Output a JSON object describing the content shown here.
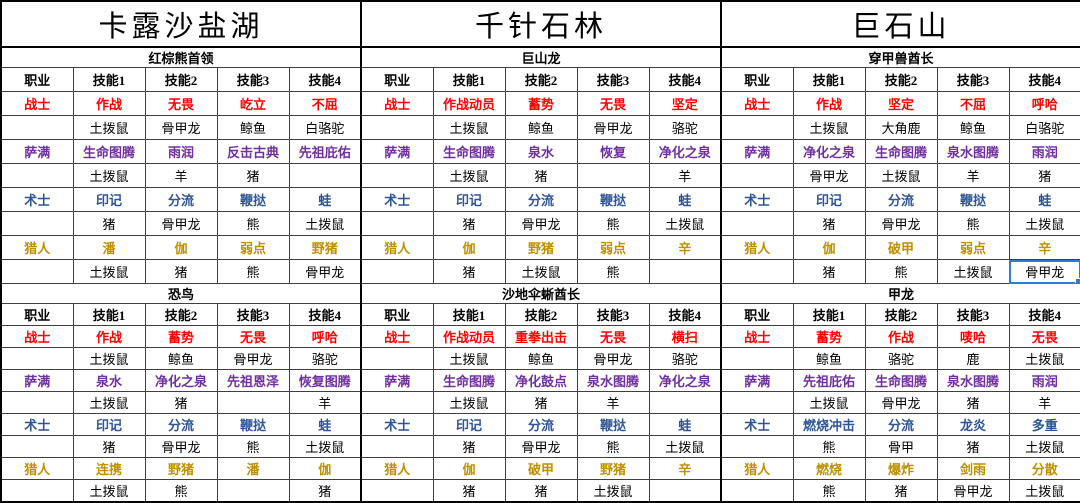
{
  "sheet": {
    "column_headers": [
      "职业",
      "技能1",
      "技能2",
      "技能3",
      "技能4"
    ],
    "class_colors": {
      "战士": "#ff0000",
      "萨满": "#7030a0",
      "术士": "#2f5597",
      "猎人": "#bf9000"
    },
    "selection_color": "#2b7cd3",
    "sections": [
      {
        "location": "卡露沙盐湖",
        "bosses": [
          {
            "name": "红棕熊首领",
            "rows": [
              {
                "class": "战士",
                "skills": [
                  "作战",
                  "无畏",
                  "屹立",
                  "不屈"
                ],
                "pets": [
                  "土拨鼠",
                  "骨甲龙",
                  "鲸鱼",
                  "白骆驼"
                ]
              },
              {
                "class": "萨满",
                "skills": [
                  "生命图腾",
                  "雨润",
                  "反击古典",
                  "先祖庇佑"
                ],
                "pets": [
                  "土拨鼠",
                  "羊",
                  "猪",
                  ""
                ]
              },
              {
                "class": "术士",
                "skills": [
                  "印记",
                  "分流",
                  "鞭挞",
                  "蛙"
                ],
                "pets": [
                  "猪",
                  "骨甲龙",
                  "熊",
                  "土拨鼠"
                ]
              },
              {
                "class": "猎人",
                "skills": [
                  "潘",
                  "伽",
                  "弱点",
                  "野猪"
                ],
                "pets": [
                  "土拨鼠",
                  "猪",
                  "熊",
                  "骨甲龙"
                ]
              }
            ]
          },
          {
            "name": "恐鸟",
            "rows": [
              {
                "class": "战士",
                "skills": [
                  "作战",
                  "蓄势",
                  "无畏",
                  "呼哈"
                ],
                "pets": [
                  "土拨鼠",
                  "鲸鱼",
                  "骨甲龙",
                  "骆驼"
                ]
              },
              {
                "class": "萨满",
                "skills": [
                  "泉水",
                  "净化之泉",
                  "先祖恩泽",
                  "恢复图腾"
                ],
                "pets": [
                  "土拨鼠",
                  "猪",
                  "",
                  "羊"
                ]
              },
              {
                "class": "术士",
                "skills": [
                  "印记",
                  "分流",
                  "鞭挞",
                  "蛙"
                ],
                "pets": [
                  "猪",
                  "骨甲龙",
                  "熊",
                  "土拨鼠"
                ]
              },
              {
                "class": "猎人",
                "skills": [
                  "连携",
                  "野猪",
                  "潘",
                  "伽"
                ],
                "pets": [
                  "土拨鼠",
                  "熊",
                  "",
                  "猪"
                ]
              }
            ]
          }
        ]
      },
      {
        "location": "千针石林",
        "bosses": [
          {
            "name": "巨山龙",
            "rows": [
              {
                "class": "战士",
                "skills": [
                  "作战动员",
                  "蓄势",
                  "无畏",
                  "坚定"
                ],
                "pets": [
                  "土拨鼠",
                  "鲸鱼",
                  "骨甲龙",
                  "骆驼"
                ]
              },
              {
                "class": "萨满",
                "skills": [
                  "生命图腾",
                  "泉水",
                  "恢复",
                  "净化之泉"
                ],
                "pets": [
                  "土拨鼠",
                  "猪",
                  "",
                  "羊"
                ]
              },
              {
                "class": "术士",
                "skills": [
                  "印记",
                  "分流",
                  "鞭挞",
                  "蛙"
                ],
                "pets": [
                  "猪",
                  "骨甲龙",
                  "熊",
                  "土拨鼠"
                ]
              },
              {
                "class": "猎人",
                "skills": [
                  "伽",
                  "野猪",
                  "弱点",
                  "辛"
                ],
                "pets": [
                  "猪",
                  "土拨鼠",
                  "熊",
                  ""
                ]
              }
            ]
          },
          {
            "name": "沙地伞蜥酋长",
            "rows": [
              {
                "class": "战士",
                "skills": [
                  "作战动员",
                  "重拳出击",
                  "无畏",
                  "横扫"
                ],
                "pets": [
                  "土拨鼠",
                  "鲸鱼",
                  "骨甲龙",
                  "骆驼"
                ]
              },
              {
                "class": "萨满",
                "skills": [
                  "生命图腾",
                  "净化鼓点",
                  "泉水图腾",
                  "净化之泉"
                ],
                "pets": [
                  "土拨鼠",
                  "猪",
                  "羊",
                  ""
                ]
              },
              {
                "class": "术士",
                "skills": [
                  "印记",
                  "分流",
                  "鞭挞",
                  "蛙"
                ],
                "pets": [
                  "猪",
                  "骨甲龙",
                  "熊",
                  "土拨鼠"
                ]
              },
              {
                "class": "猎人",
                "skills": [
                  "伽",
                  "破甲",
                  "野猪",
                  "辛"
                ],
                "pets": [
                  "猪",
                  "猪",
                  "土拨鼠",
                  ""
                ]
              }
            ]
          }
        ]
      },
      {
        "location": "巨石山",
        "bosses": [
          {
            "name": "穿甲兽酋长",
            "rows": [
              {
                "class": "战士",
                "skills": [
                  "作战",
                  "坚定",
                  "不屈",
                  "呼哈"
                ],
                "pets": [
                  "土拨鼠",
                  "大角鹿",
                  "鲸鱼",
                  "白骆驼"
                ]
              },
              {
                "class": "萨满",
                "skills": [
                  "净化之泉",
                  "生命图腾",
                  "泉水图腾",
                  "雨润"
                ],
                "pets": [
                  "骨甲龙",
                  "土拨鼠",
                  "羊",
                  "猪"
                ]
              },
              {
                "class": "术士",
                "skills": [
                  "印记",
                  "分流",
                  "鞭挞",
                  "蛙"
                ],
                "pets": [
                  "猪",
                  "骨甲龙",
                  "熊",
                  "土拨鼠"
                ]
              },
              {
                "class": "猎人",
                "skills": [
                  "伽",
                  "破甲",
                  "弱点",
                  "辛"
                ],
                "pets": [
                  "猪",
                  "熊",
                  "土拨鼠",
                  "骨甲龙"
                ]
              }
            ]
          },
          {
            "name": "甲龙",
            "rows": [
              {
                "class": "战士",
                "skills": [
                  "蓄势",
                  "作战",
                  "唛哈",
                  "无畏"
                ],
                "pets": [
                  "鲸鱼",
                  "骆驼",
                  "鹿",
                  "土拨鼠"
                ]
              },
              {
                "class": "萨满",
                "skills": [
                  "先祖庇佑",
                  "生命图腾",
                  "泉水图腾",
                  "雨润"
                ],
                "pets": [
                  "土拨鼠",
                  "骨甲龙",
                  "猪",
                  "羊"
                ]
              },
              {
                "class": "术士",
                "skills": [
                  "燃烧冲击",
                  "分流",
                  "龙炎",
                  "多重"
                ],
                "pets": [
                  "熊",
                  "骨甲",
                  "猪",
                  "土拨鼠"
                ]
              },
              {
                "class": "猎人",
                "skills": [
                  "燃烧",
                  "爆炸",
                  "剑雨",
                  "分散"
                ],
                "pets": [
                  "熊",
                  "猪",
                  "骨甲龙",
                  "土拨鼠"
                ]
              }
            ]
          }
        ]
      }
    ],
    "selected_cell": {
      "section_index": 2,
      "boss_index": 0,
      "class": "猎人",
      "row_type": "pets",
      "col_index": 3,
      "value": "骨甲龙"
    }
  }
}
